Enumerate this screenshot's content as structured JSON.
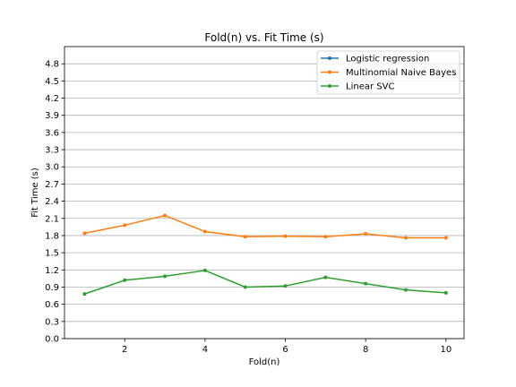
{
  "chart_data": {
    "type": "line",
    "title": "Fold(n) vs. Fit Time (s)",
    "xlabel": "Fold(n)",
    "ylabel": "Fit Time (s)",
    "xlim": [
      0.5,
      10.45
    ],
    "ylim": [
      0.0,
      5.1
    ],
    "x_ticks": [
      2,
      4,
      6,
      8,
      10
    ],
    "y_ticks": [
      0.0,
      0.3,
      0.6,
      0.9,
      1.2,
      1.5,
      1.8,
      2.1,
      2.4,
      2.7,
      3.0,
      3.3,
      3.6,
      3.9,
      4.2,
      4.5,
      4.8
    ],
    "x_tick_labels": [
      "2",
      "4",
      "6",
      "8",
      "10"
    ],
    "y_tick_labels": [
      "0.0",
      "0.3",
      "0.6",
      "0.9",
      "1.2",
      "1.5",
      "1.8",
      "2.1",
      "2.4",
      "2.7",
      "3.0",
      "3.3",
      "3.6",
      "3.9",
      "4.2",
      "4.5",
      "4.8"
    ],
    "grid": "horizontal",
    "legend_position": "upper right",
    "x": [
      1,
      2,
      3,
      4,
      5,
      6,
      7,
      8,
      9,
      10
    ],
    "series": [
      {
        "name": "Logistic regression",
        "color": "#1f77b4",
        "values": [
          null,
          null,
          null,
          null,
          null,
          null,
          null,
          null,
          null,
          null
        ]
      },
      {
        "name": "Multinomial Naive Bayes",
        "color": "#ff7f0e",
        "values": [
          1.84,
          1.98,
          2.15,
          1.87,
          1.78,
          1.79,
          1.78,
          1.83,
          1.76,
          1.76
        ]
      },
      {
        "name": "Linear SVC",
        "color": "#2ca02c",
        "values": [
          0.78,
          1.02,
          1.09,
          1.19,
          0.9,
          0.92,
          1.07,
          0.96,
          0.85,
          0.8
        ]
      }
    ]
  }
}
